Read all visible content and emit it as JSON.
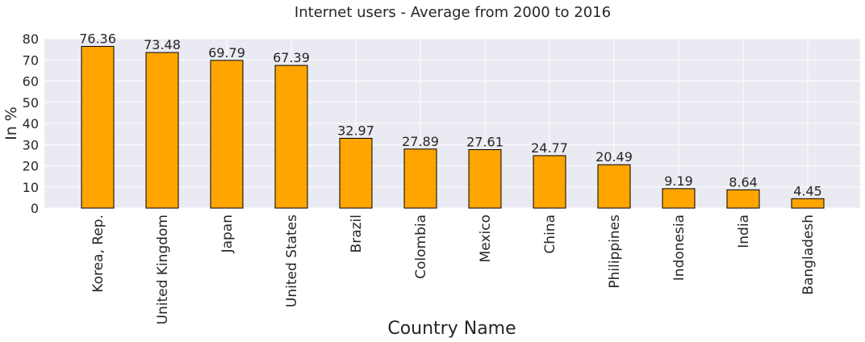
{
  "chart_data": {
    "type": "bar",
    "title": "Internet users - Average from 2000 to 2016",
    "xlabel": "Country Name",
    "ylabel": "In %",
    "categories": [
      "Korea, Rep.",
      "United Kingdom",
      "Japan",
      "United States",
      "Brazil",
      "Colombia",
      "Mexico",
      "China",
      "Philippines",
      "Indonesia",
      "India",
      "Bangladesh"
    ],
    "values": [
      76.36,
      73.48,
      69.79,
      67.39,
      32.97,
      27.89,
      27.61,
      24.77,
      20.49,
      9.19,
      8.64,
      4.45
    ],
    "data_labels": [
      "76.36",
      "73.48",
      "69.79",
      "67.39",
      "32.97",
      "27.89",
      "27.61",
      "24.77",
      "20.49",
      "9.19",
      "8.64",
      "4.45"
    ],
    "yticks": [
      0,
      10,
      20,
      30,
      40,
      50,
      60,
      70,
      80
    ],
    "ylim": [
      0,
      80
    ],
    "grid": true,
    "colors": {
      "bar": "#ffa500",
      "bar_edge": "#000000",
      "plot_background": "#eaeaf2",
      "grid": "#ffffff",
      "text": "#262626"
    }
  }
}
